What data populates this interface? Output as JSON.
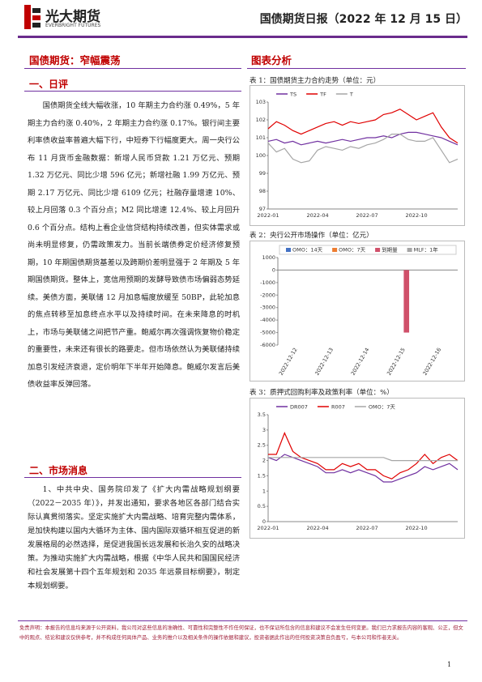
{
  "header": {
    "logo_cn": "光大期货",
    "logo_en": "EVERBRIGHT FUTURES",
    "report_title": "国债期货日报（2022 年 12 月 15 日）"
  },
  "left": {
    "headline": "国债期货：窄幅震荡",
    "section1": "一、日评",
    "paragraph1": "国债期货全线大幅收涨，10 年期主力合约涨 0.49%，5 年期主力合约涨 0.40%，2 年期主力合约涨 0.17%。银行间主要利率债收益率普遍大幅下行，中短券下行幅度更大。周一央行公布 11 月货币金融数据：新增人民币贷款 1.21 万亿元、预期 1.32 万亿元、同比少增 596 亿元；新增社融 1.99 万亿元、预期 2.17 万亿元、同比少增 6109 亿元；社融存量增速 10%、较上月回落 0.3 个百分点；M2 同比增速 12.4%、较上月回升 0.6 个百分点。结构上看企业信贷结构持续改善，但实体需求或尚未明显修复，仍需政策发力。当前长端债券定价经济修复预期，10 年期国债期货基差以及跨期价差明显强于 2 年期及 5 年期国债期货。整体上，宽信用预期的发酵导致债市场偏弱态势延续。美债方面，美联储 12 月加息幅度放缓至 50BP，此轮加息的焦点转移至加息终点水平以及持续时间。在未来降息的时机上，市场与美联储之间把节产重。鲍威尔再次强调恢复物价稳定的重要性，未来还有很长的路要走。但市场依然认为美联储持续加息引发经济衰退，定价明年下半年开始降息。鲍威尔发言后美债收益率反弹回落。",
    "section2": "二、市场消息",
    "paragraph2": "1、中共中央、国务院印发了《扩大内需战略规划纲要（2022－2035 年）》，并发出通知，要求各地区各部门结合实际认真贯彻落实。坚定实施扩大内需战略、培育完整内需体系，是加快构建以国内大循环为主体、国内国际双循环相互促进的新发展格局的必然选择，是促进我国长远发展和长治久安的战略决策。为推动实施扩大内需战略，根据《中华人民共和国国民经济和社会发展第十四个五年规划和 2035 年远景目标纲要》，制定本规划纲要。"
  },
  "right": {
    "heading": "图表分析"
  },
  "chart_data": [
    {
      "type": "line",
      "title": "表 1：国债期货主力合约走势（单位：元）",
      "legend": "top",
      "categories": [
        "2022-01",
        null,
        null,
        null,
        null,
        null,
        "2022-04",
        null,
        null,
        null,
        null,
        null,
        "2022-07",
        null,
        null,
        null,
        null,
        null,
        "2022-10",
        null,
        null,
        null,
        null,
        null
      ],
      "ylim": [
        97,
        103
      ],
      "yticks": [
        97,
        98,
        99,
        100,
        101,
        102,
        103
      ],
      "series": [
        {
          "name": "TS",
          "color": "#7030a0",
          "values": [
            100.8,
            100.9,
            100.7,
            100.8,
            100.6,
            100.7,
            100.8,
            100.7,
            100.8,
            100.9,
            100.8,
            100.9,
            101.0,
            101.0,
            101.1,
            101.0,
            101.2,
            101.3,
            101.3,
            101.2,
            101.1,
            101.0,
            100.8,
            100.6
          ]
        },
        {
          "name": "TF",
          "color": "#e00000",
          "values": [
            101.5,
            101.9,
            101.7,
            101.4,
            101.2,
            101.4,
            101.6,
            101.8,
            101.9,
            101.7,
            101.9,
            101.8,
            101.9,
            102.0,
            102.3,
            102.4,
            102.6,
            102.3,
            102.0,
            102.2,
            102.4,
            101.6,
            101.0,
            100.7
          ]
        },
        {
          "name": "T",
          "color": "#a6a6a6",
          "values": [
            100.7,
            100.2,
            100.4,
            99.8,
            99.6,
            99.7,
            100.3,
            100.5,
            100.4,
            100.3,
            100.5,
            100.4,
            100.6,
            100.7,
            100.9,
            101.2,
            101.2,
            100.9,
            100.8,
            100.8,
            101.0,
            100.3,
            99.6,
            99.8
          ]
        }
      ]
    },
    {
      "type": "bar",
      "title": "表 2：央行公开市场操作（单位：亿元）",
      "legend": "top",
      "categories": [
        "2022-12-12",
        "2022-12-13",
        "2022-12-14",
        "2022-12-15",
        "2022-12-16"
      ],
      "ylim": [
        -6000,
        1000
      ],
      "yticks": [
        -6000,
        -5000,
        -4000,
        -3000,
        -2000,
        -1000,
        0,
        1000
      ],
      "series": [
        {
          "name": "OMO：14天",
          "color": "#4472c4",
          "values": [
            0,
            0,
            0,
            0,
            0
          ]
        },
        {
          "name": "OMO：7天",
          "color": "#ed7d31",
          "values": [
            0,
            0,
            0,
            0,
            0
          ]
        },
        {
          "name": "到期量",
          "color": "#d0506a",
          "values": [
            0,
            0,
            0,
            -5000,
            0
          ]
        },
        {
          "name": "MLF：1年",
          "color": "#a5a5a5",
          "values": [
            0,
            0,
            0,
            0,
            0
          ]
        }
      ]
    },
    {
      "type": "line",
      "title": "表 3：质押式回购利率及政策利率（单位：%）",
      "legend": "top",
      "categories": [
        "2022-01",
        null,
        null,
        null,
        null,
        null,
        "2022-04",
        null,
        null,
        null,
        null,
        null,
        "2022-07",
        null,
        null,
        null,
        null,
        null,
        "2022-10",
        null,
        null,
        null,
        null,
        null
      ],
      "ylim": [
        0,
        3.5
      ],
      "yticks": [
        0,
        0.5,
        1,
        1.5,
        2,
        2.5,
        3,
        3.5
      ],
      "series": [
        {
          "name": "DR007",
          "color": "#7030a0",
          "values": [
            2.1,
            2.0,
            2.2,
            2.1,
            2.0,
            1.9,
            1.8,
            1.6,
            1.6,
            1.7,
            1.6,
            1.7,
            1.6,
            1.5,
            1.3,
            1.3,
            1.4,
            1.5,
            1.6,
            1.8,
            1.7,
            1.8,
            1.9,
            1.7
          ]
        },
        {
          "name": "R007",
          "color": "#e00000",
          "values": [
            2.2,
            2.2,
            2.9,
            2.3,
            2.1,
            2.0,
            1.9,
            1.7,
            1.7,
            1.9,
            1.8,
            1.9,
            1.7,
            1.7,
            1.5,
            1.4,
            1.6,
            1.7,
            1.9,
            2.2,
            1.9,
            2.1,
            2.2,
            2.0
          ]
        },
        {
          "name": "OMO：7天",
          "color": "#a6a6a6",
          "values": [
            2.1,
            2.1,
            2.1,
            2.1,
            2.1,
            2.1,
            2.1,
            2.1,
            2.1,
            2.1,
            2.1,
            2.1,
            2.1,
            2.1,
            2.1,
            2.0,
            2.0,
            2.0,
            2.0,
            2.0,
            2.0,
            2.0,
            2.0,
            2.0
          ]
        }
      ]
    }
  ],
  "footer": {
    "disclaimer": "免责声明：本报告的信息均来源于公开资料，我公司对这些信息的准确性、可靠性和完整性不作任何保证，也不保证所包含的信息和建议不会发生任何变更。我们已力求报告内容的客观、公正，但文中的观点、结论和建议仅供参考，并不构成任何具体产品、业务的推介以及相关条件的操作依据和建议，投资者据此作出的任何投资决策自负盈亏，与本公司和作者无关。",
    "page": "1"
  }
}
